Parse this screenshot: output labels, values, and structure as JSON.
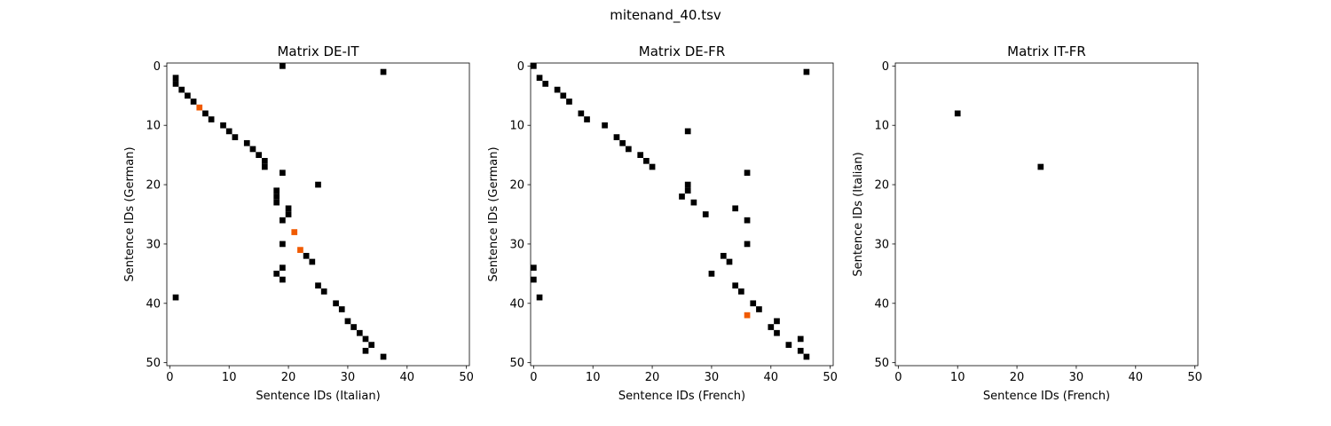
{
  "figure": {
    "title": "mitenand_40.tsv"
  },
  "chart_data": [
    {
      "type": "heatmap",
      "title": "Matrix DE-IT",
      "xlabel": "Sentence IDs (Italian)",
      "ylabel": "Sentence IDs (German)",
      "xlim": [
        0,
        50
      ],
      "ylim": [
        50,
        0
      ],
      "xticks": [
        "0",
        "10",
        "20",
        "30",
        "40",
        "50"
      ],
      "yticks": [
        "0",
        "10",
        "20",
        "30",
        "40",
        "50"
      ],
      "colors": {
        "black": "#000000",
        "orange": "#f05a00"
      },
      "black_cells": [
        [
          19,
          0
        ],
        [
          36,
          1
        ],
        [
          1,
          2
        ],
        [
          1,
          3
        ],
        [
          2,
          4
        ],
        [
          3,
          5
        ],
        [
          4,
          6
        ],
        [
          6,
          8
        ],
        [
          7,
          9
        ],
        [
          9,
          10
        ],
        [
          10,
          11
        ],
        [
          11,
          12
        ],
        [
          13,
          13
        ],
        [
          14,
          14
        ],
        [
          15,
          15
        ],
        [
          16,
          16
        ],
        [
          16,
          17
        ],
        [
          19,
          18
        ],
        [
          25,
          20
        ],
        [
          18,
          21
        ],
        [
          18,
          22
        ],
        [
          18,
          23
        ],
        [
          20,
          24
        ],
        [
          20,
          25
        ],
        [
          19,
          26
        ],
        [
          19,
          30
        ],
        [
          24,
          33
        ],
        [
          23,
          32
        ],
        [
          19,
          34
        ],
        [
          18,
          35
        ],
        [
          19,
          36
        ],
        [
          25,
          37
        ],
        [
          26,
          38
        ],
        [
          1,
          39
        ],
        [
          28,
          40
        ],
        [
          29,
          41
        ],
        [
          30,
          43
        ],
        [
          31,
          44
        ],
        [
          32,
          45
        ],
        [
          33,
          46
        ],
        [
          34,
          47
        ],
        [
          33,
          48
        ],
        [
          36,
          49
        ]
      ],
      "orange_cells": [
        [
          5,
          7
        ],
        [
          21,
          28
        ],
        [
          22,
          31
        ]
      ]
    },
    {
      "type": "heatmap",
      "title": "Matrix DE-FR",
      "xlabel": "Sentence IDs (French)",
      "ylabel": "Sentence IDs (German)",
      "xlim": [
        0,
        50
      ],
      "ylim": [
        50,
        0
      ],
      "xticks": [
        "0",
        "10",
        "20",
        "30",
        "40",
        "50"
      ],
      "yticks": [
        "0",
        "10",
        "20",
        "30",
        "40",
        "50"
      ],
      "colors": {
        "black": "#000000",
        "orange": "#f05a00"
      },
      "black_cells": [
        [
          0,
          0
        ],
        [
          46,
          1
        ],
        [
          1,
          2
        ],
        [
          2,
          3
        ],
        [
          4,
          4
        ],
        [
          5,
          5
        ],
        [
          6,
          6
        ],
        [
          8,
          8
        ],
        [
          9,
          9
        ],
        [
          12,
          10
        ],
        [
          26,
          11
        ],
        [
          14,
          12
        ],
        [
          15,
          13
        ],
        [
          16,
          14
        ],
        [
          18,
          15
        ],
        [
          19,
          16
        ],
        [
          20,
          17
        ],
        [
          36,
          18
        ],
        [
          26,
          20
        ],
        [
          26,
          21
        ],
        [
          25,
          22
        ],
        [
          27,
          23
        ],
        [
          34,
          24
        ],
        [
          29,
          25
        ],
        [
          36,
          26
        ],
        [
          36,
          30
        ],
        [
          32,
          32
        ],
        [
          33,
          33
        ],
        [
          0,
          34
        ],
        [
          30,
          35
        ],
        [
          0,
          36
        ],
        [
          34,
          37
        ],
        [
          35,
          38
        ],
        [
          1,
          39
        ],
        [
          37,
          40
        ],
        [
          38,
          41
        ],
        [
          41,
          43
        ],
        [
          40,
          44
        ],
        [
          41,
          45
        ],
        [
          45,
          46
        ],
        [
          43,
          47
        ],
        [
          45,
          48
        ],
        [
          46,
          49
        ]
      ],
      "orange_cells": [
        [
          36,
          42
        ]
      ]
    },
    {
      "type": "heatmap",
      "title": "Matrix IT-FR",
      "xlabel": "Sentence IDs (French)",
      "ylabel": "Sentence IDs (Italian)",
      "xlim": [
        0,
        50
      ],
      "ylim": [
        50,
        0
      ],
      "xticks": [
        "0",
        "10",
        "20",
        "30",
        "40",
        "50"
      ],
      "yticks": [
        "0",
        "10",
        "20",
        "30",
        "40",
        "50"
      ],
      "colors": {
        "black": "#000000",
        "orange": "#f05a00"
      },
      "black_cells": [
        [
          10,
          8
        ],
        [
          24,
          17
        ]
      ],
      "orange_cells": []
    }
  ]
}
